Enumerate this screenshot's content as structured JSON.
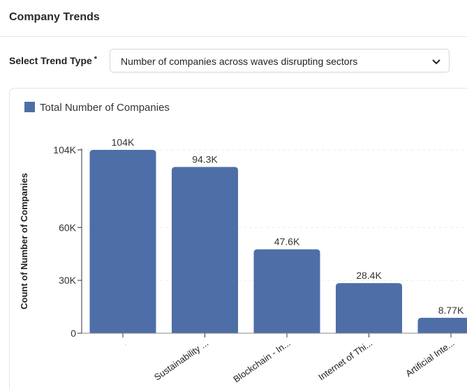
{
  "header": {
    "title": "Company Trends"
  },
  "filter": {
    "label": "Select Trend Type",
    "required_mark": "*",
    "value": "Number of companies across waves disrupting sectors"
  },
  "legend": {
    "label": "Total Number of Companies",
    "color": "#4e6ea8"
  },
  "chart_data": {
    "type": "bar",
    "ylabel": "Count of Number of Companies",
    "categories": [
      ".",
      "Sustainability ...",
      "Blockchain - In...",
      "Internet of Thi...",
      "Artificial Inte..."
    ],
    "values": [
      104000,
      94300,
      47600,
      28400,
      8770
    ],
    "data_labels": [
      "104K",
      "94.3K",
      "47.6K",
      "28.4K",
      "8.77K"
    ],
    "yticks": [
      {
        "v": 0,
        "t": "0"
      },
      {
        "v": 30000,
        "t": "30K"
      },
      {
        "v": 60000,
        "t": "60K"
      },
      {
        "v": 104000,
        "t": "104K"
      }
    ],
    "ylim": [
      0,
      104000
    ],
    "grid": true,
    "legend_position": "top-left",
    "color": "#4e6ea8"
  }
}
